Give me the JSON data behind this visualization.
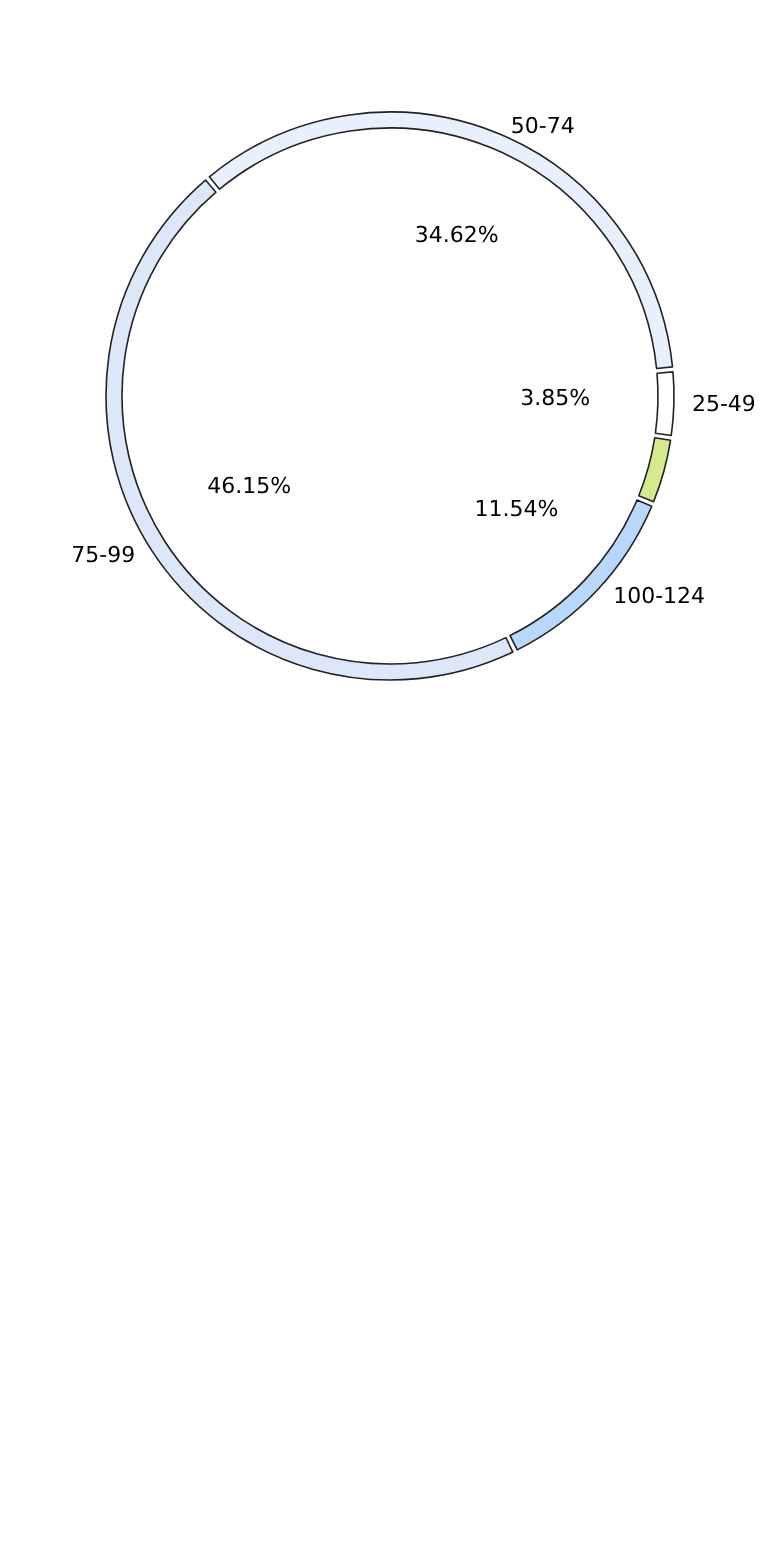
{
  "chart_data": {
    "type": "donut",
    "categories": [
      "50-74",
      "25-49",
      null,
      "100-124",
      "75-99"
    ],
    "values": [
      34.62,
      3.85,
      3.85,
      11.54,
      46.15
    ],
    "value_labels": [
      "34.62%",
      "3.85%",
      null,
      "11.54%",
      "46.15%"
    ],
    "colors": [
      "#e8f0fe",
      "#ffffff",
      "#d4ea8c",
      "#b8d8fb",
      "#dce8fa"
    ],
    "legend": false
  }
}
